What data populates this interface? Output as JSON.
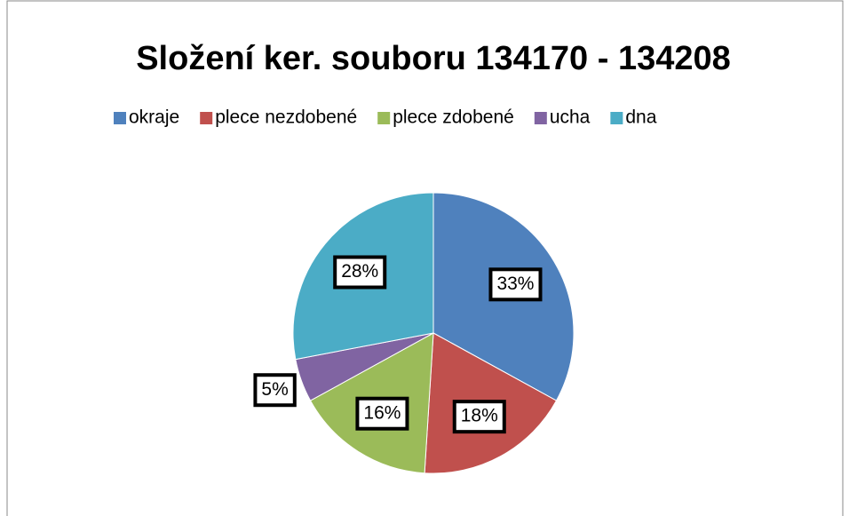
{
  "chart_data": {
    "type": "pie",
    "title": "Složení ker. souboru 134170 - 134208",
    "categories": [
      "okraje",
      "plece nezdobené",
      "plece zdobené",
      "ucha",
      "dna"
    ],
    "values": [
      33,
      18,
      16,
      5,
      28
    ],
    "value_labels": [
      "33%",
      "18%",
      "16%",
      "5%",
      "28%"
    ],
    "colors": [
      "#4f81bd",
      "#c0504d",
      "#9bbb59",
      "#8064a2",
      "#4bacc6"
    ],
    "legend": "top"
  }
}
